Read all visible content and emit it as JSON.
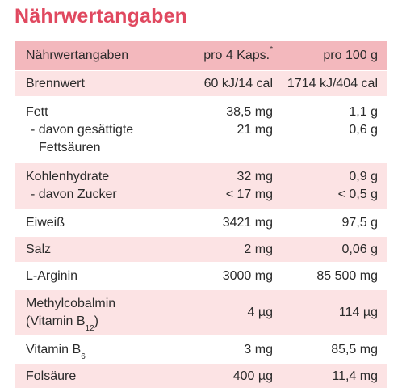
{
  "title": "Nährwertangaben",
  "table": {
    "headers": [
      "Nährwertangaben",
      "pro 4 Kaps.",
      "pro 100 g"
    ],
    "header_footnote_mark": "*",
    "rows": [
      {
        "name": "Brennwert",
        "per_caps": "60 kJ/14 cal",
        "per_100g": "1714 kJ/404 cal"
      },
      {
        "name": "Fett",
        "per_caps": "38,5 mg",
        "per_100g": "1,1 g",
        "sub_name_line1": "- davon gesättigte",
        "sub_name_line2": "Fettsäuren",
        "sub_per_caps": "21 mg",
        "sub_per_100g": "0,6 g"
      },
      {
        "name": "Kohlenhydrate",
        "per_caps": "32 mg",
        "per_100g": "0,9 g",
        "sub_name_line1": "- davon Zucker",
        "sub_per_caps": "< 17 mg",
        "sub_per_100g": "< 0,5 g"
      },
      {
        "name": "Eiweiß",
        "per_caps": "3421 mg",
        "per_100g": "97,5 g"
      },
      {
        "name": "Salz",
        "per_caps": "2 mg",
        "per_100g": "0,06 g"
      },
      {
        "name": "L-Arginin",
        "per_caps": "3000 mg",
        "per_100g": "85 500 mg"
      },
      {
        "name_line1": "Methylcobalmin",
        "name_line2": "(Vitamin B",
        "name_sub": "12",
        "name_tail": ")",
        "per_caps": "4 µg",
        "per_100g": "114 µg"
      },
      {
        "name": "Vitamin B",
        "name_sub": "6",
        "per_caps": "3 mg",
        "per_100g": "85,5 mg"
      },
      {
        "name": "Folsäure",
        "per_caps": "400 µg",
        "per_100g": "11,4 mg"
      }
    ]
  },
  "colors": {
    "title": "#e0485f",
    "header_bg": "#f3b8bd",
    "row_pink": "#fce3e4",
    "row_white": "#ffffff",
    "text": "#2b2b2b"
  }
}
